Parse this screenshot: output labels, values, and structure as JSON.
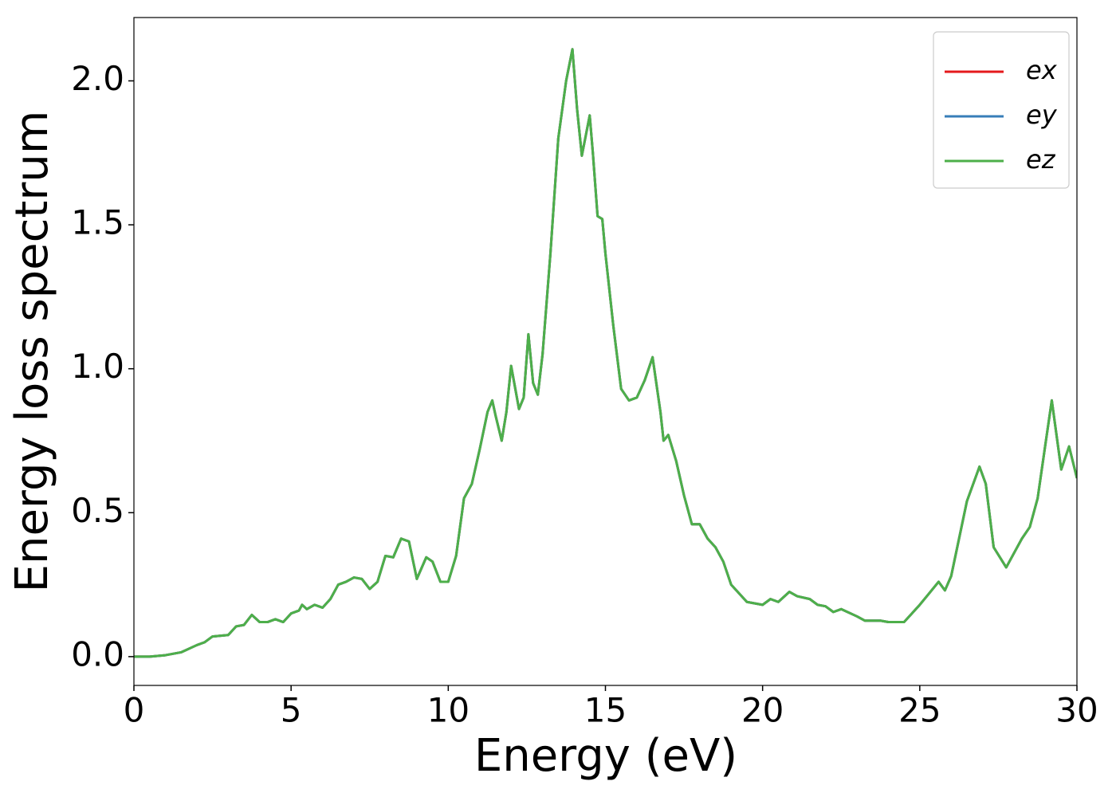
{
  "chart_data": {
    "type": "line",
    "xlabel": "Energy (eV)",
    "ylabel": "Energy loss spectrum",
    "x": [
      0,
      0.5,
      1.0,
      1.5,
      2.0,
      2.25,
      2.5,
      3.0,
      3.25,
      3.5,
      3.75,
      4.0,
      4.25,
      4.5,
      4.75,
      5.0,
      5.25,
      5.35,
      5.5,
      5.75,
      6.0,
      6.25,
      6.5,
      6.75,
      7.0,
      7.25,
      7.5,
      7.75,
      8.0,
      8.25,
      8.5,
      8.75,
      9.0,
      9.3,
      9.5,
      9.75,
      10.0,
      10.25,
      10.5,
      10.75,
      11.0,
      11.25,
      11.4,
      11.5,
      11.7,
      11.85,
      12.0,
      12.25,
      12.4,
      12.55,
      12.7,
      12.85,
      13.0,
      13.25,
      13.5,
      13.75,
      13.95,
      14.1,
      14.25,
      14.5,
      14.6,
      14.75,
      14.9,
      15.0,
      15.25,
      15.5,
      15.75,
      16.0,
      16.25,
      16.5,
      16.75,
      16.85,
      17.0,
      17.25,
      17.5,
      17.75,
      18.0,
      18.25,
      18.5,
      18.75,
      19.0,
      19.5,
      20.0,
      20.25,
      20.5,
      20.85,
      21.1,
      21.5,
      21.75,
      22.0,
      22.25,
      22.5,
      23.0,
      23.25,
      23.75,
      24.0,
      24.5,
      25.0,
      25.3,
      25.6,
      25.8,
      26.0,
      26.5,
      26.9,
      27.1,
      27.35,
      27.75,
      28.0,
      28.25,
      28.5,
      28.75,
      29.0,
      29.2,
      29.5,
      29.75,
      30.0
    ],
    "series": [
      {
        "name": "ex",
        "color": "#e41a1c",
        "values": [
          0.0,
          0.0,
          0.005,
          0.015,
          0.04,
          0.05,
          0.07,
          0.075,
          0.105,
          0.11,
          0.145,
          0.12,
          0.12,
          0.13,
          0.12,
          0.15,
          0.16,
          0.18,
          0.165,
          0.18,
          0.17,
          0.2,
          0.25,
          0.26,
          0.275,
          0.27,
          0.235,
          0.26,
          0.35,
          0.345,
          0.41,
          0.4,
          0.27,
          0.345,
          0.33,
          0.26,
          0.26,
          0.35,
          0.55,
          0.6,
          0.72,
          0.85,
          0.89,
          0.84,
          0.75,
          0.85,
          1.01,
          0.86,
          0.9,
          1.12,
          0.95,
          0.91,
          1.05,
          1.4,
          1.8,
          2.0,
          2.11,
          1.9,
          1.74,
          1.88,
          1.75,
          1.53,
          1.52,
          1.4,
          1.15,
          0.93,
          0.89,
          0.9,
          0.96,
          1.04,
          0.85,
          0.75,
          0.77,
          0.68,
          0.56,
          0.46,
          0.46,
          0.41,
          0.38,
          0.33,
          0.25,
          0.19,
          0.18,
          0.2,
          0.19,
          0.225,
          0.21,
          0.2,
          0.18,
          0.175,
          0.155,
          0.165,
          0.14,
          0.125,
          0.125,
          0.12,
          0.12,
          0.18,
          0.22,
          0.26,
          0.23,
          0.28,
          0.54,
          0.66,
          0.6,
          0.38,
          0.31,
          0.36,
          0.41,
          0.45,
          0.55,
          0.74,
          0.89,
          0.65,
          0.73,
          0.62
        ]
      },
      {
        "name": "ey",
        "color": "#377eb8",
        "values": [
          0.0,
          0.0,
          0.005,
          0.015,
          0.04,
          0.05,
          0.07,
          0.075,
          0.105,
          0.11,
          0.145,
          0.12,
          0.12,
          0.13,
          0.12,
          0.15,
          0.16,
          0.18,
          0.165,
          0.18,
          0.17,
          0.2,
          0.25,
          0.26,
          0.275,
          0.27,
          0.235,
          0.26,
          0.35,
          0.345,
          0.41,
          0.4,
          0.27,
          0.345,
          0.33,
          0.26,
          0.26,
          0.35,
          0.55,
          0.6,
          0.72,
          0.85,
          0.89,
          0.84,
          0.75,
          0.85,
          1.01,
          0.86,
          0.9,
          1.12,
          0.95,
          0.91,
          1.05,
          1.4,
          1.8,
          2.0,
          2.11,
          1.9,
          1.74,
          1.88,
          1.75,
          1.53,
          1.52,
          1.4,
          1.15,
          0.93,
          0.89,
          0.9,
          0.96,
          1.04,
          0.85,
          0.75,
          0.77,
          0.68,
          0.56,
          0.46,
          0.46,
          0.41,
          0.38,
          0.33,
          0.25,
          0.19,
          0.18,
          0.2,
          0.19,
          0.225,
          0.21,
          0.2,
          0.18,
          0.175,
          0.155,
          0.165,
          0.14,
          0.125,
          0.125,
          0.12,
          0.12,
          0.18,
          0.22,
          0.26,
          0.23,
          0.28,
          0.54,
          0.66,
          0.6,
          0.38,
          0.31,
          0.36,
          0.41,
          0.45,
          0.55,
          0.74,
          0.89,
          0.65,
          0.73,
          0.62
        ]
      },
      {
        "name": "ez",
        "color": "#4daf4a",
        "values": [
          0.0,
          0.0,
          0.005,
          0.015,
          0.04,
          0.05,
          0.07,
          0.075,
          0.105,
          0.11,
          0.145,
          0.12,
          0.12,
          0.13,
          0.12,
          0.15,
          0.16,
          0.18,
          0.165,
          0.18,
          0.17,
          0.2,
          0.25,
          0.26,
          0.275,
          0.27,
          0.235,
          0.26,
          0.35,
          0.345,
          0.41,
          0.4,
          0.27,
          0.345,
          0.33,
          0.26,
          0.26,
          0.35,
          0.55,
          0.6,
          0.72,
          0.85,
          0.89,
          0.84,
          0.75,
          0.85,
          1.01,
          0.86,
          0.9,
          1.12,
          0.95,
          0.91,
          1.05,
          1.4,
          1.8,
          2.0,
          2.11,
          1.9,
          1.74,
          1.88,
          1.75,
          1.53,
          1.52,
          1.4,
          1.15,
          0.93,
          0.89,
          0.9,
          0.96,
          1.04,
          0.85,
          0.75,
          0.77,
          0.68,
          0.56,
          0.46,
          0.46,
          0.41,
          0.38,
          0.33,
          0.25,
          0.19,
          0.18,
          0.2,
          0.19,
          0.225,
          0.21,
          0.2,
          0.18,
          0.175,
          0.155,
          0.165,
          0.14,
          0.125,
          0.125,
          0.12,
          0.12,
          0.18,
          0.22,
          0.26,
          0.23,
          0.28,
          0.54,
          0.66,
          0.6,
          0.38,
          0.31,
          0.36,
          0.41,
          0.45,
          0.55,
          0.74,
          0.89,
          0.65,
          0.73,
          0.62
        ]
      }
    ],
    "xlim": [
      0,
      30
    ],
    "xticks": [
      0,
      5,
      10,
      15,
      20,
      25,
      30
    ],
    "ylim": [
      -0.1,
      2.22
    ],
    "yticks": [
      {
        "value": 0,
        "label": "0.0"
      },
      0.5,
      {
        "value": 1,
        "label": "1.0"
      },
      1.5,
      {
        "value": 2,
        "label": "2.0"
      }
    ],
    "grid": false,
    "legend": "upper right"
  }
}
